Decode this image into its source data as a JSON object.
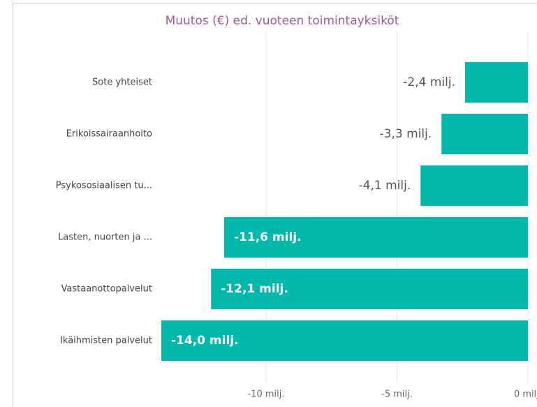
{
  "chart_data": {
    "type": "bar",
    "orientation": "horizontal",
    "title": "Muutos (€) ed. vuoteen toimintayksiköt",
    "categories": [
      "Sote yhteiset",
      "Erikoissairaanhoito",
      "Psykososiaalisen tu...",
      "Lasten, nuorten ja ...",
      "Vastaanottopalvelut",
      "Ikäihmisten palvelut"
    ],
    "values": [
      -2.4,
      -3.3,
      -4.1,
      -11.6,
      -12.1,
      -14.0
    ],
    "value_labels": [
      "-2,4 milj.",
      "-3,3 milj.",
      "-4,1 milj.",
      "-11,6 milj.",
      "-12,1 milj.",
      "-14,0 milj."
    ],
    "color": "#01b8aa",
    "xlim": [
      -14,
      0
    ],
    "xticks": [
      {
        "value": -10,
        "label": "-10 milj."
      },
      {
        "value": -5,
        "label": "-5 milj."
      },
      {
        "value": 0,
        "label": "0 milj."
      }
    ],
    "grid": true
  }
}
